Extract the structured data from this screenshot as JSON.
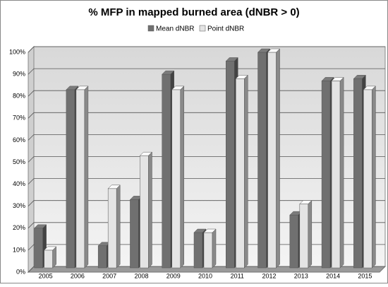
{
  "chart_data": {
    "type": "bar3d",
    "title": "% MFP in mapped burned area (dNBR > 0)",
    "categories": [
      "2005",
      "2006",
      "2007",
      "2008",
      "2009",
      "2010",
      "2011",
      "2012",
      "2013",
      "2014",
      "2015"
    ],
    "series": [
      {
        "name": "Mean dNBR",
        "color": "#707070",
        "values": [
          20,
          83,
          12,
          33,
          90,
          18,
          96,
          100,
          26,
          87,
          88
        ]
      },
      {
        "name": "Point dNBR",
        "color": "#e4e4e4",
        "values": [
          10,
          83,
          38,
          53,
          83,
          18,
          88,
          100,
          31,
          87,
          83
        ]
      }
    ],
    "ylim": [
      0,
      100
    ],
    "yticks": [
      {
        "value": 0,
        "label": "0%"
      },
      {
        "value": 10,
        "label": "10%"
      },
      {
        "value": 20,
        "label": "20%"
      },
      {
        "value": 30,
        "label": "30%"
      },
      {
        "value": 40,
        "label": "40%"
      },
      {
        "value": 50,
        "label": "50%"
      },
      {
        "value": 60,
        "label": "60%"
      },
      {
        "value": 70,
        "label": "70%"
      },
      {
        "value": 80,
        "label": "80%"
      },
      {
        "value": 90,
        "label": "90%"
      },
      {
        "value": 100,
        "label": "100%"
      }
    ],
    "grid": true,
    "legend": "top"
  }
}
